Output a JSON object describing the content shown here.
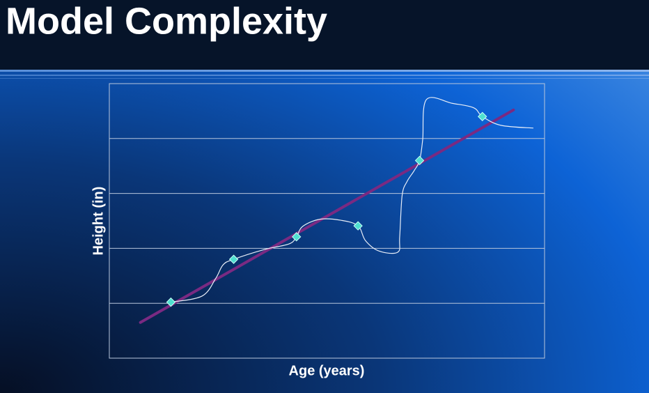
{
  "chart_data": {
    "type": "line",
    "title": "Model Complexity",
    "xlabel": "Age (years)",
    "ylabel": "Height (in)",
    "xlim": [
      0,
      7
    ],
    "ylim": [
      0,
      5
    ],
    "ygrid": [
      1,
      2,
      3,
      4,
      5
    ],
    "series": [
      {
        "type": "line",
        "color": "#7a2a82",
        "x": [
          0.5,
          6.5
        ],
        "values": [
          0.65,
          4.52
        ]
      },
      {
        "type": "smooth",
        "color": "#e8eef8",
        "x": [
          0.99,
          1.49,
          1.71,
          1.83,
          2.0,
          2.5,
          2.89,
          3.01,
          3.11,
          3.39,
          3.73,
          4.0,
          4.12,
          4.34,
          4.64,
          4.67,
          4.71,
          4.79,
          4.9,
          4.99,
          5.04,
          5.1,
          5.52,
          5.86,
          6.0,
          6.3,
          6.82
        ],
        "values": [
          1.02,
          1.13,
          1.45,
          1.7,
          1.8,
          1.98,
          2.08,
          2.21,
          2.4,
          2.53,
          2.51,
          2.41,
          2.14,
          1.95,
          1.93,
          2.21,
          2.97,
          3.22,
          3.41,
          3.6,
          3.98,
          4.71,
          4.64,
          4.56,
          4.4,
          4.24,
          4.19
        ]
      },
      {
        "type": "scatter",
        "color": "#4fe0d0",
        "x": [
          0.99,
          2.0,
          3.01,
          4.0,
          4.99,
          6.0
        ],
        "values": [
          1.02,
          1.8,
          2.21,
          2.41,
          3.6,
          4.4
        ]
      }
    ]
  }
}
